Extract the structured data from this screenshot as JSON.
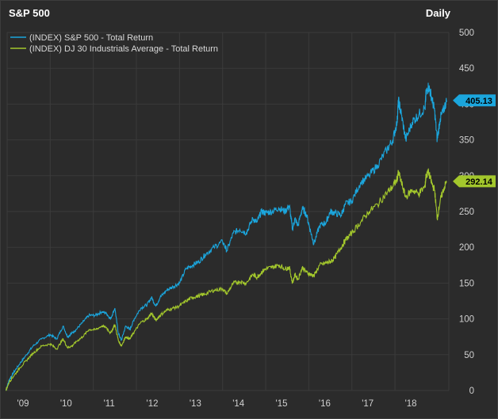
{
  "header": {
    "title": "S&P 500",
    "period": "Daily"
  },
  "colors": {
    "sp500": "#1ba6dd",
    "dji": "#a3c72c",
    "grid": "#3b3b3b",
    "bg": "#2b2b2b"
  },
  "chart_data": {
    "type": "line",
    "title": "S&P 500",
    "xlabel": "",
    "ylabel": "",
    "ylim": [
      0,
      500
    ],
    "xlim": [
      2009.0,
      2019.25
    ],
    "y_ticks": [
      "0",
      "50",
      "100",
      "150",
      "200",
      "250",
      "300",
      "350",
      "400",
      "450",
      "500"
    ],
    "x_ticks": [
      {
        "label": "'09",
        "x": 2009.0
      },
      {
        "label": "'10",
        "x": 2010.0
      },
      {
        "label": "'11",
        "x": 2011.0
      },
      {
        "label": "'12",
        "x": 2012.0
      },
      {
        "label": "'13",
        "x": 2013.0
      },
      {
        "label": "'14",
        "x": 2014.0
      },
      {
        "label": "'15",
        "x": 2015.0
      },
      {
        "label": "'16",
        "x": 2016.0
      },
      {
        "label": "'17",
        "x": 2017.0
      },
      {
        "label": "'18",
        "x": 2018.0
      }
    ],
    "series": [
      {
        "name": "(INDEX) S&P 500 - Total Return",
        "color": "#1ba6dd",
        "last_value": "405.13",
        "x": [
          2008.97,
          2009.05,
          2009.15,
          2009.3,
          2009.45,
          2009.6,
          2009.8,
          2010.0,
          2010.15,
          2010.3,
          2010.4,
          2010.5,
          2010.6,
          2010.75,
          2010.9,
          2011.05,
          2011.2,
          2011.3,
          2011.4,
          2011.5,
          2011.58,
          2011.65,
          2011.75,
          2011.85,
          2011.95,
          2012.1,
          2012.25,
          2012.35,
          2012.45,
          2012.55,
          2012.7,
          2012.85,
          2013.0,
          2013.15,
          2013.3,
          2013.45,
          2013.6,
          2013.8,
          2014.0,
          2014.1,
          2014.25,
          2014.4,
          2014.55,
          2014.7,
          2014.8,
          2014.9,
          2015.0,
          2015.15,
          2015.3,
          2015.45,
          2015.55,
          2015.62,
          2015.68,
          2015.75,
          2015.85,
          2015.95,
          2016.05,
          2016.12,
          2016.25,
          2016.4,
          2016.5,
          2016.6,
          2016.75,
          2016.85,
          2017.0,
          2017.2,
          2017.4,
          2017.6,
          2017.8,
          2017.95,
          2018.05,
          2018.08,
          2018.15,
          2018.25,
          2018.4,
          2018.55,
          2018.7,
          2018.72,
          2018.78,
          2018.85,
          2018.92,
          2018.98,
          2019.05,
          2019.12,
          2019.2
        ],
        "values": [
          0,
          15,
          25,
          38,
          50,
          62,
          72,
          78,
          72,
          90,
          75,
          80,
          85,
          95,
          105,
          105,
          110,
          108,
          100,
          115,
          80,
          70,
          90,
          85,
          100,
          115,
          120,
          130,
          118,
          130,
          140,
          145,
          150,
          170,
          175,
          180,
          190,
          200,
          208,
          195,
          220,
          225,
          220,
          240,
          235,
          250,
          248,
          250,
          255,
          250,
          258,
          225,
          240,
          230,
          255,
          245,
          220,
          205,
          230,
          235,
          250,
          248,
          245,
          260,
          265,
          290,
          300,
          315,
          335,
          350,
          375,
          405,
          385,
          350,
          375,
          385,
          395,
          415,
          425,
          410,
          390,
          350,
          380,
          390,
          405.13
        ]
      },
      {
        "name": "(INDEX) DJ 30 Industrials Average - Total Return",
        "color": "#a3c72c",
        "last_value": "292.14",
        "x": [
          2008.97,
          2009.05,
          2009.15,
          2009.3,
          2009.45,
          2009.6,
          2009.8,
          2010.0,
          2010.15,
          2010.3,
          2010.4,
          2010.5,
          2010.6,
          2010.75,
          2010.9,
          2011.05,
          2011.2,
          2011.3,
          2011.4,
          2011.5,
          2011.58,
          2011.65,
          2011.75,
          2011.85,
          2011.95,
          2012.1,
          2012.25,
          2012.35,
          2012.45,
          2012.55,
          2012.7,
          2012.85,
          2013.0,
          2013.15,
          2013.3,
          2013.45,
          2013.6,
          2013.8,
          2014.0,
          2014.1,
          2014.25,
          2014.4,
          2014.55,
          2014.7,
          2014.8,
          2014.9,
          2015.0,
          2015.15,
          2015.3,
          2015.45,
          2015.55,
          2015.62,
          2015.68,
          2015.75,
          2015.85,
          2015.95,
          2016.05,
          2016.12,
          2016.25,
          2016.4,
          2016.5,
          2016.6,
          2016.75,
          2016.85,
          2017.0,
          2017.2,
          2017.4,
          2017.6,
          2017.8,
          2017.95,
          2018.05,
          2018.08,
          2018.15,
          2018.25,
          2018.4,
          2018.55,
          2018.7,
          2018.72,
          2018.78,
          2018.85,
          2018.92,
          2018.98,
          2019.05,
          2019.12,
          2019.2
        ],
        "values": [
          0,
          12,
          20,
          32,
          42,
          52,
          62,
          65,
          58,
          72,
          60,
          62,
          68,
          75,
          85,
          85,
          90,
          88,
          80,
          92,
          70,
          62,
          75,
          72,
          82,
          95,
          100,
          108,
          98,
          105,
          112,
          115,
          118,
          125,
          130,
          132,
          135,
          140,
          142,
          135,
          150,
          152,
          150,
          162,
          158,
          165,
          170,
          172,
          175,
          170,
          172,
          150,
          162,
          155,
          172,
          165,
          162,
          160,
          175,
          178,
          180,
          185,
          200,
          210,
          220,
          235,
          250,
          260,
          275,
          285,
          295,
          305,
          290,
          270,
          280,
          275,
          285,
          300,
          305,
          290,
          280,
          240,
          265,
          280,
          292.14
        ]
      }
    ]
  }
}
